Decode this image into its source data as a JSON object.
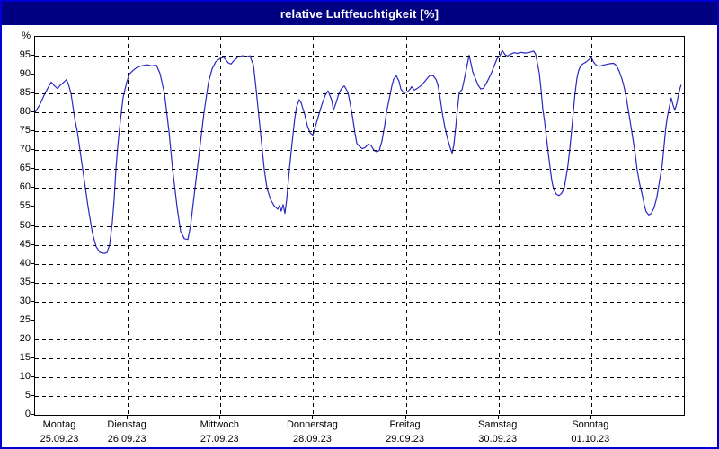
{
  "colors": {
    "outer_border": "#0000d4",
    "titlebar_bg": "#000080",
    "title_text": "#ffffff",
    "line": "#2828be",
    "grid": "#000000",
    "background": "#ffffff"
  },
  "chart_data": {
    "type": "line",
    "title": "relative Luftfeuchtigkeit [%]",
    "ylabel": "%",
    "xlabel": "",
    "unit_label": "%",
    "ylim": [
      0,
      100
    ],
    "xlim_days": [
      0,
      7
    ],
    "grid": "dashed horizontal every 5%, dashed vertical at each day boundary",
    "legend": "none",
    "yticks": [
      0,
      5,
      10,
      15,
      20,
      25,
      30,
      35,
      40,
      45,
      50,
      55,
      60,
      65,
      70,
      75,
      80,
      85,
      90,
      95
    ],
    "x_categories": [
      {
        "weekday": "Montag",
        "date": "25.09.23"
      },
      {
        "weekday": "Dienstag",
        "date": "26.09.23"
      },
      {
        "weekday": "Mittwoch",
        "date": "27.09.23"
      },
      {
        "weekday": "Donnerstag",
        "date": "28.09.23"
      },
      {
        "weekday": "Freitag",
        "date": "29.09.23"
      },
      {
        "weekday": "Samstag",
        "date": "30.09.23"
      },
      {
        "weekday": "Sonntag",
        "date": "01.10.23"
      }
    ],
    "series": [
      {
        "name": "relative Luftfeuchtigkeit [%]",
        "color": "#2828be",
        "x_unit": "days from 25.09.23 00:00",
        "y_unit": "%",
        "points": [
          [
            0.0,
            80.0
          ],
          [
            0.05,
            82.0
          ],
          [
            0.097,
            84.5
          ],
          [
            0.14,
            86.5
          ],
          [
            0.175,
            88.0
          ],
          [
            0.21,
            87.0
          ],
          [
            0.242,
            86.3
          ],
          [
            0.271,
            87.2
          ],
          [
            0.31,
            88.0
          ],
          [
            0.339,
            88.7
          ],
          [
            0.36,
            87.5
          ],
          [
            0.388,
            85.0
          ],
          [
            0.43,
            78.0
          ],
          [
            0.456,
            75.0
          ],
          [
            0.514,
            65.0
          ],
          [
            0.572,
            55.0
          ],
          [
            0.62,
            48.0
          ],
          [
            0.659,
            44.5
          ],
          [
            0.698,
            43.0
          ],
          [
            0.747,
            42.7
          ],
          [
            0.776,
            42.9
          ],
          [
            0.805,
            45.0
          ],
          [
            0.834,
            51.0
          ],
          [
            0.853,
            57.0
          ],
          [
            0.873,
            65.0
          ],
          [
            0.892,
            71.0
          ],
          [
            0.921,
            78.0
          ],
          [
            0.95,
            84.0
          ],
          [
            0.989,
            88.0
          ],
          [
            1.018,
            90.2
          ],
          [
            1.066,
            91.3
          ],
          [
            1.105,
            92.0
          ],
          [
            1.163,
            92.4
          ],
          [
            1.212,
            92.6
          ],
          [
            1.26,
            92.3
          ],
          [
            1.309,
            92.5
          ],
          [
            1.348,
            90.3
          ],
          [
            1.396,
            85.0
          ],
          [
            1.445,
            75.0
          ],
          [
            1.483,
            65.0
          ],
          [
            1.532,
            55.0
          ],
          [
            1.571,
            48.5
          ],
          [
            1.61,
            46.6
          ],
          [
            1.648,
            46.4
          ],
          [
            1.677,
            50.0
          ],
          [
            1.726,
            60.0
          ],
          [
            1.774,
            70.0
          ],
          [
            1.823,
            80.0
          ],
          [
            1.871,
            88.0
          ],
          [
            1.91,
            91.5
          ],
          [
            1.949,
            93.4
          ],
          [
            1.997,
            94.3
          ],
          [
            2.036,
            94.6
          ],
          [
            2.084,
            93.1
          ],
          [
            2.114,
            92.8
          ],
          [
            2.143,
            93.6
          ],
          [
            2.191,
            94.7
          ],
          [
            2.24,
            95.0
          ],
          [
            2.288,
            94.7
          ],
          [
            2.317,
            95.0
          ],
          [
            2.356,
            92.5
          ],
          [
            2.385,
            86.0
          ],
          [
            2.414,
            79.0
          ],
          [
            2.443,
            72.0
          ],
          [
            2.472,
            65.0
          ],
          [
            2.501,
            60.0
          ],
          [
            2.54,
            57.0
          ],
          [
            2.579,
            55.3
          ],
          [
            2.618,
            54.4
          ],
          [
            2.637,
            55.4
          ],
          [
            2.656,
            53.9
          ],
          [
            2.676,
            55.6
          ],
          [
            2.695,
            53.3
          ],
          [
            2.715,
            57.0
          ],
          [
            2.744,
            65.0
          ],
          [
            2.773,
            72.0
          ],
          [
            2.802,
            78.5
          ],
          [
            2.821,
            81.5
          ],
          [
            2.85,
            83.4
          ],
          [
            2.87,
            82.6
          ],
          [
            2.889,
            81.0
          ],
          [
            2.908,
            79.6
          ],
          [
            2.937,
            76.5
          ],
          [
            2.967,
            74.6
          ],
          [
            2.996,
            74.0
          ],
          [
            3.044,
            78.0
          ],
          [
            3.093,
            82.0
          ],
          [
            3.132,
            84.6
          ],
          [
            3.161,
            85.7
          ],
          [
            3.2,
            83.2
          ],
          [
            3.219,
            80.6
          ],
          [
            3.248,
            82.6
          ],
          [
            3.277,
            85.0
          ],
          [
            3.306,
            86.3
          ],
          [
            3.335,
            87.0
          ],
          [
            3.374,
            85.4
          ],
          [
            3.394,
            83.0
          ],
          [
            3.423,
            79.0
          ],
          [
            3.452,
            74.5
          ],
          [
            3.471,
            71.8
          ],
          [
            3.5,
            71.0
          ],
          [
            3.529,
            70.4
          ],
          [
            3.558,
            70.7
          ],
          [
            3.597,
            71.6
          ],
          [
            3.626,
            71.2
          ],
          [
            3.655,
            70.0
          ],
          [
            3.684,
            69.6
          ],
          [
            3.713,
            69.9
          ],
          [
            3.742,
            72.5
          ],
          [
            3.771,
            76.5
          ],
          [
            3.791,
            80.0
          ],
          [
            3.82,
            83.5
          ],
          [
            3.849,
            87.0
          ],
          [
            3.868,
            88.8
          ],
          [
            3.897,
            89.7
          ],
          [
            3.926,
            88.3
          ],
          [
            3.946,
            86.2
          ],
          [
            3.975,
            85.2
          ],
          [
            4.014,
            85.4
          ],
          [
            4.043,
            86.1
          ],
          [
            4.062,
            86.8
          ],
          [
            4.091,
            85.9
          ],
          [
            4.12,
            86.3
          ],
          [
            4.159,
            87.0
          ],
          [
            4.198,
            88.0
          ],
          [
            4.237,
            89.2
          ],
          [
            4.266,
            89.9
          ],
          [
            4.295,
            89.7
          ],
          [
            4.324,
            88.8
          ],
          [
            4.344,
            87.4
          ],
          [
            4.363,
            85.0
          ],
          [
            4.392,
            80.0
          ],
          [
            4.421,
            76.0
          ],
          [
            4.45,
            73.0
          ],
          [
            4.479,
            70.6
          ],
          [
            4.499,
            69.2
          ],
          [
            4.518,
            71.5
          ],
          [
            4.537,
            76.0
          ],
          [
            4.557,
            81.0
          ],
          [
            4.576,
            85.3
          ],
          [
            4.605,
            86.0
          ],
          [
            4.624,
            88.0
          ],
          [
            4.644,
            90.4
          ],
          [
            4.663,
            92.8
          ],
          [
            4.682,
            95.1
          ],
          [
            4.702,
            93.0
          ],
          [
            4.721,
            90.8
          ],
          [
            4.75,
            89.0
          ],
          [
            4.779,
            87.2
          ],
          [
            4.808,
            86.2
          ],
          [
            4.837,
            86.4
          ],
          [
            4.866,
            87.6
          ],
          [
            4.895,
            89.0
          ],
          [
            4.925,
            90.6
          ],
          [
            4.954,
            92.4
          ],
          [
            4.983,
            94.2
          ],
          [
            5.012,
            94.9
          ],
          [
            5.041,
            96.4
          ],
          [
            5.07,
            95.3
          ],
          [
            5.099,
            94.9
          ],
          [
            5.128,
            95.4
          ],
          [
            5.167,
            95.8
          ],
          [
            5.206,
            95.6
          ],
          [
            5.245,
            95.9
          ],
          [
            5.284,
            95.7
          ],
          [
            5.322,
            95.8
          ],
          [
            5.351,
            96.0
          ],
          [
            5.38,
            96.2
          ],
          [
            5.4,
            95.4
          ],
          [
            5.419,
            93.0
          ],
          [
            5.439,
            90.5
          ],
          [
            5.458,
            86.0
          ],
          [
            5.477,
            81.0
          ],
          [
            5.497,
            77.5
          ],
          [
            5.516,
            73.5
          ],
          [
            5.535,
            69.5
          ],
          [
            5.555,
            65.5
          ],
          [
            5.574,
            62.0
          ],
          [
            5.593,
            59.8
          ],
          [
            5.622,
            58.4
          ],
          [
            5.651,
            58.0
          ],
          [
            5.68,
            58.6
          ],
          [
            5.709,
            60.0
          ],
          [
            5.729,
            63.0
          ],
          [
            5.748,
            66.0
          ],
          [
            5.767,
            70.0
          ],
          [
            5.787,
            75.0
          ],
          [
            5.806,
            80.0
          ],
          [
            5.825,
            85.0
          ],
          [
            5.845,
            89.0
          ],
          [
            5.864,
            91.0
          ],
          [
            5.884,
            92.3
          ],
          [
            5.913,
            92.9
          ],
          [
            5.942,
            93.3
          ],
          [
            5.971,
            93.9
          ],
          [
            6.0,
            94.5
          ],
          [
            6.029,
            93.2
          ],
          [
            6.058,
            92.4
          ],
          [
            6.087,
            92.2
          ],
          [
            6.126,
            92.5
          ],
          [
            6.165,
            92.7
          ],
          [
            6.204,
            92.9
          ],
          [
            6.242,
            93.0
          ],
          [
            6.271,
            92.4
          ],
          [
            6.3,
            91.0
          ],
          [
            6.329,
            89.0
          ],
          [
            6.349,
            87.2
          ],
          [
            6.378,
            84.0
          ],
          [
            6.397,
            81.0
          ],
          [
            6.417,
            78.0
          ],
          [
            6.446,
            73.5
          ],
          [
            6.475,
            69.0
          ],
          [
            6.494,
            65.0
          ],
          [
            6.523,
            61.0
          ],
          [
            6.552,
            58.0
          ],
          [
            6.572,
            55.5
          ],
          [
            6.591,
            53.8
          ],
          [
            6.62,
            52.9
          ],
          [
            6.649,
            53.3
          ],
          [
            6.678,
            54.8
          ],
          [
            6.707,
            57.5
          ],
          [
            6.736,
            61.8
          ],
          [
            6.765,
            66.0
          ],
          [
            6.785,
            71.0
          ],
          [
            6.804,
            76.0
          ],
          [
            6.823,
            79.0
          ],
          [
            6.843,
            81.5
          ],
          [
            6.862,
            83.8
          ],
          [
            6.882,
            82.0
          ],
          [
            6.901,
            80.6
          ],
          [
            6.921,
            82.2
          ],
          [
            6.94,
            84.6
          ],
          [
            6.959,
            86.5
          ],
          [
            6.969,
            87.2
          ]
        ]
      }
    ]
  }
}
